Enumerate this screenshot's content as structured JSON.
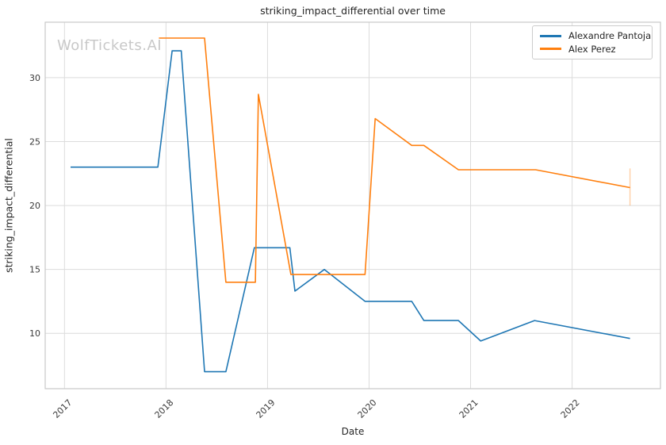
{
  "watermark": {
    "text": "WolfTickets.AI"
  },
  "chart_data": {
    "type": "line",
    "title": "striking_impact_differential over time",
    "xlabel": "Date",
    "ylabel": "striking_impact_differential",
    "x_tick_labels": [
      "2017",
      "2018",
      "2019",
      "2020",
      "2021",
      "2022"
    ],
    "x_tick_values": [
      2017,
      2018,
      2019,
      2020,
      2021,
      2022
    ],
    "y_tick_labels": [
      "10",
      "15",
      "20",
      "25",
      "30"
    ],
    "y_tick_values": [
      10,
      15,
      20,
      25,
      30
    ],
    "xlim": [
      2016.81,
      2022.87
    ],
    "ylim": [
      5.67,
      34.34
    ],
    "grid": true,
    "legend_position": "top-right",
    "style": {
      "background": "#ffffff",
      "grid_color": "#dcdcdc",
      "spine_color": "#c9c9c9",
      "tick_color": "#3a3a3a",
      "title_color": "#262626",
      "watermark_color": "#c8c8c8"
    },
    "series": [
      {
        "name": "Alexandre Pantoja",
        "color": "#1f77b4",
        "points": [
          [
            2017.06,
            23.0
          ],
          [
            2017.92,
            23.0
          ],
          [
            2018.06,
            32.1
          ],
          [
            2018.15,
            32.1
          ],
          [
            2018.38,
            7.0
          ],
          [
            2018.59,
            7.0
          ],
          [
            2018.87,
            16.7
          ],
          [
            2019.22,
            16.7
          ],
          [
            2019.27,
            13.3
          ],
          [
            2019.56,
            15.0
          ],
          [
            2019.96,
            12.5
          ],
          [
            2020.42,
            12.5
          ],
          [
            2020.54,
            11.0
          ],
          [
            2020.88,
            11.0
          ],
          [
            2021.1,
            9.4
          ],
          [
            2021.63,
            11.0
          ],
          [
            2022.57,
            9.6
          ]
        ]
      },
      {
        "name": "Alex Perez",
        "color": "#ff7f0e",
        "points": [
          [
            2017.93,
            33.1
          ],
          [
            2018.38,
            33.1
          ],
          [
            2018.59,
            14.0
          ],
          [
            2018.88,
            14.0
          ],
          [
            2018.91,
            28.7
          ],
          [
            2019.23,
            14.6
          ],
          [
            2019.96,
            14.6
          ],
          [
            2020.06,
            26.8
          ],
          [
            2020.42,
            24.7
          ],
          [
            2020.54,
            24.7
          ],
          [
            2020.88,
            22.8
          ],
          [
            2021.64,
            22.8
          ],
          [
            2022.57,
            21.4
          ]
        ],
        "error_bar": {
          "x": 2022.57,
          "y_low": 20.0,
          "y_high": 22.9
        }
      }
    ]
  }
}
